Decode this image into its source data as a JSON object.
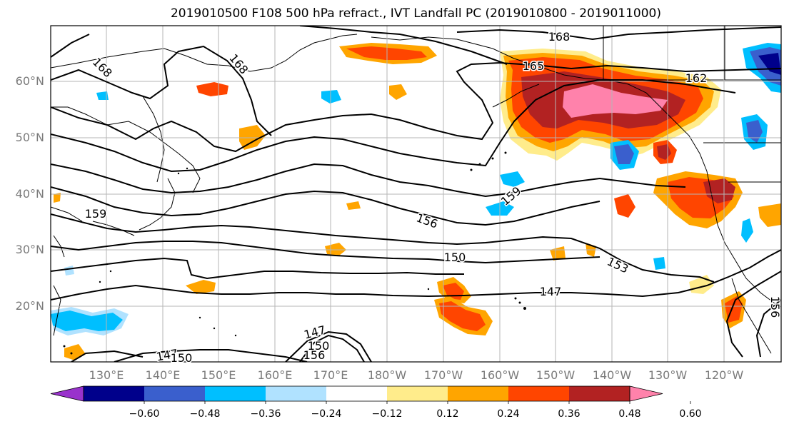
{
  "title": "2019010500 F108 500 hPa refract., IVT Landfall PC (2019010800 - 2019011000)",
  "lat_labels": [
    "60°N",
    "50°N",
    "40°N",
    "30°N",
    "20°N"
  ],
  "lon_labels": [
    "130°E",
    "140°E",
    "150°E",
    "160°E",
    "170°E",
    "180°W",
    "170°W",
    "160°W",
    "150°W",
    "140°W",
    "130°W",
    "120°W"
  ],
  "contour_labels": [
    "168",
    "168",
    "168",
    "165",
    "162",
    "159",
    "159",
    "156",
    "153",
    "150",
    "147",
    "147",
    "150",
    "156",
    "147",
    "150",
    "156"
  ],
  "colorbar": {
    "colors": [
      "#9932cc",
      "#00008b",
      "#3a5fcd",
      "#00bfff",
      "#b0e2ff",
      "#ffffff",
      "#ffec8b",
      "#ffa500",
      "#ff4500",
      "#b22222",
      "#ff82ab"
    ],
    "tick_labels": [
      "-0.60",
      "-0.48",
      "-0.36",
      "-0.24",
      "-0.12",
      "0.12",
      "0.24",
      "0.36",
      "0.48",
      "0.60"
    ]
  }
}
